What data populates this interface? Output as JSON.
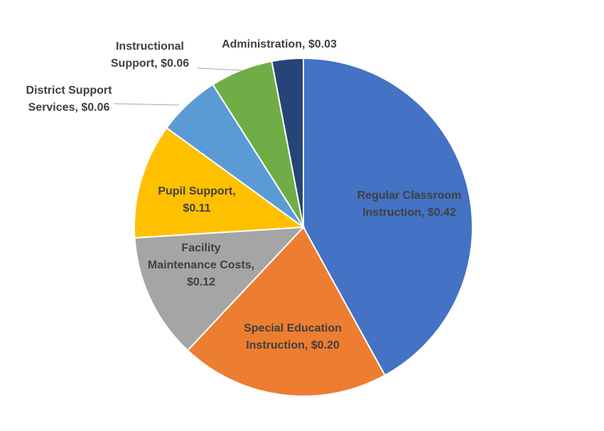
{
  "chart_data": {
    "type": "pie",
    "slices": [
      {
        "name": "Regular Classroom Instruction",
        "value": 0.42,
        "color": "#4472C4",
        "label_lines": [
          "Regular Classroom",
          "Instruction, $0.42"
        ]
      },
      {
        "name": "Special Education Instruction",
        "value": 0.2,
        "color": "#ED7D31",
        "label_lines": [
          "Special Education",
          "Instruction, $0.20"
        ]
      },
      {
        "name": "Facility Maintenance Costs",
        "value": 0.12,
        "color": "#A5A5A5",
        "label_lines": [
          "Facility",
          "Maintenance Costs,",
          "$0.12"
        ]
      },
      {
        "name": "Pupil Support",
        "value": 0.11,
        "color": "#FFC000",
        "label_lines": [
          "Pupil Support,",
          "$0.11"
        ]
      },
      {
        "name": "District Support Services",
        "value": 0.06,
        "color": "#5B9BD5",
        "label_lines": [
          "District Support",
          "Services, $0.06"
        ]
      },
      {
        "name": "Instructional Support",
        "value": 0.06,
        "color": "#70AD47",
        "label_lines": [
          "Instructional",
          "Support, $0.06"
        ]
      },
      {
        "name": "Administration",
        "value": 0.03,
        "color": "#264478",
        "label_lines": [
          "Administration, $0.03"
        ]
      }
    ],
    "legend": "none",
    "start_angle": "12 o'clock",
    "direction": "clockwise"
  }
}
